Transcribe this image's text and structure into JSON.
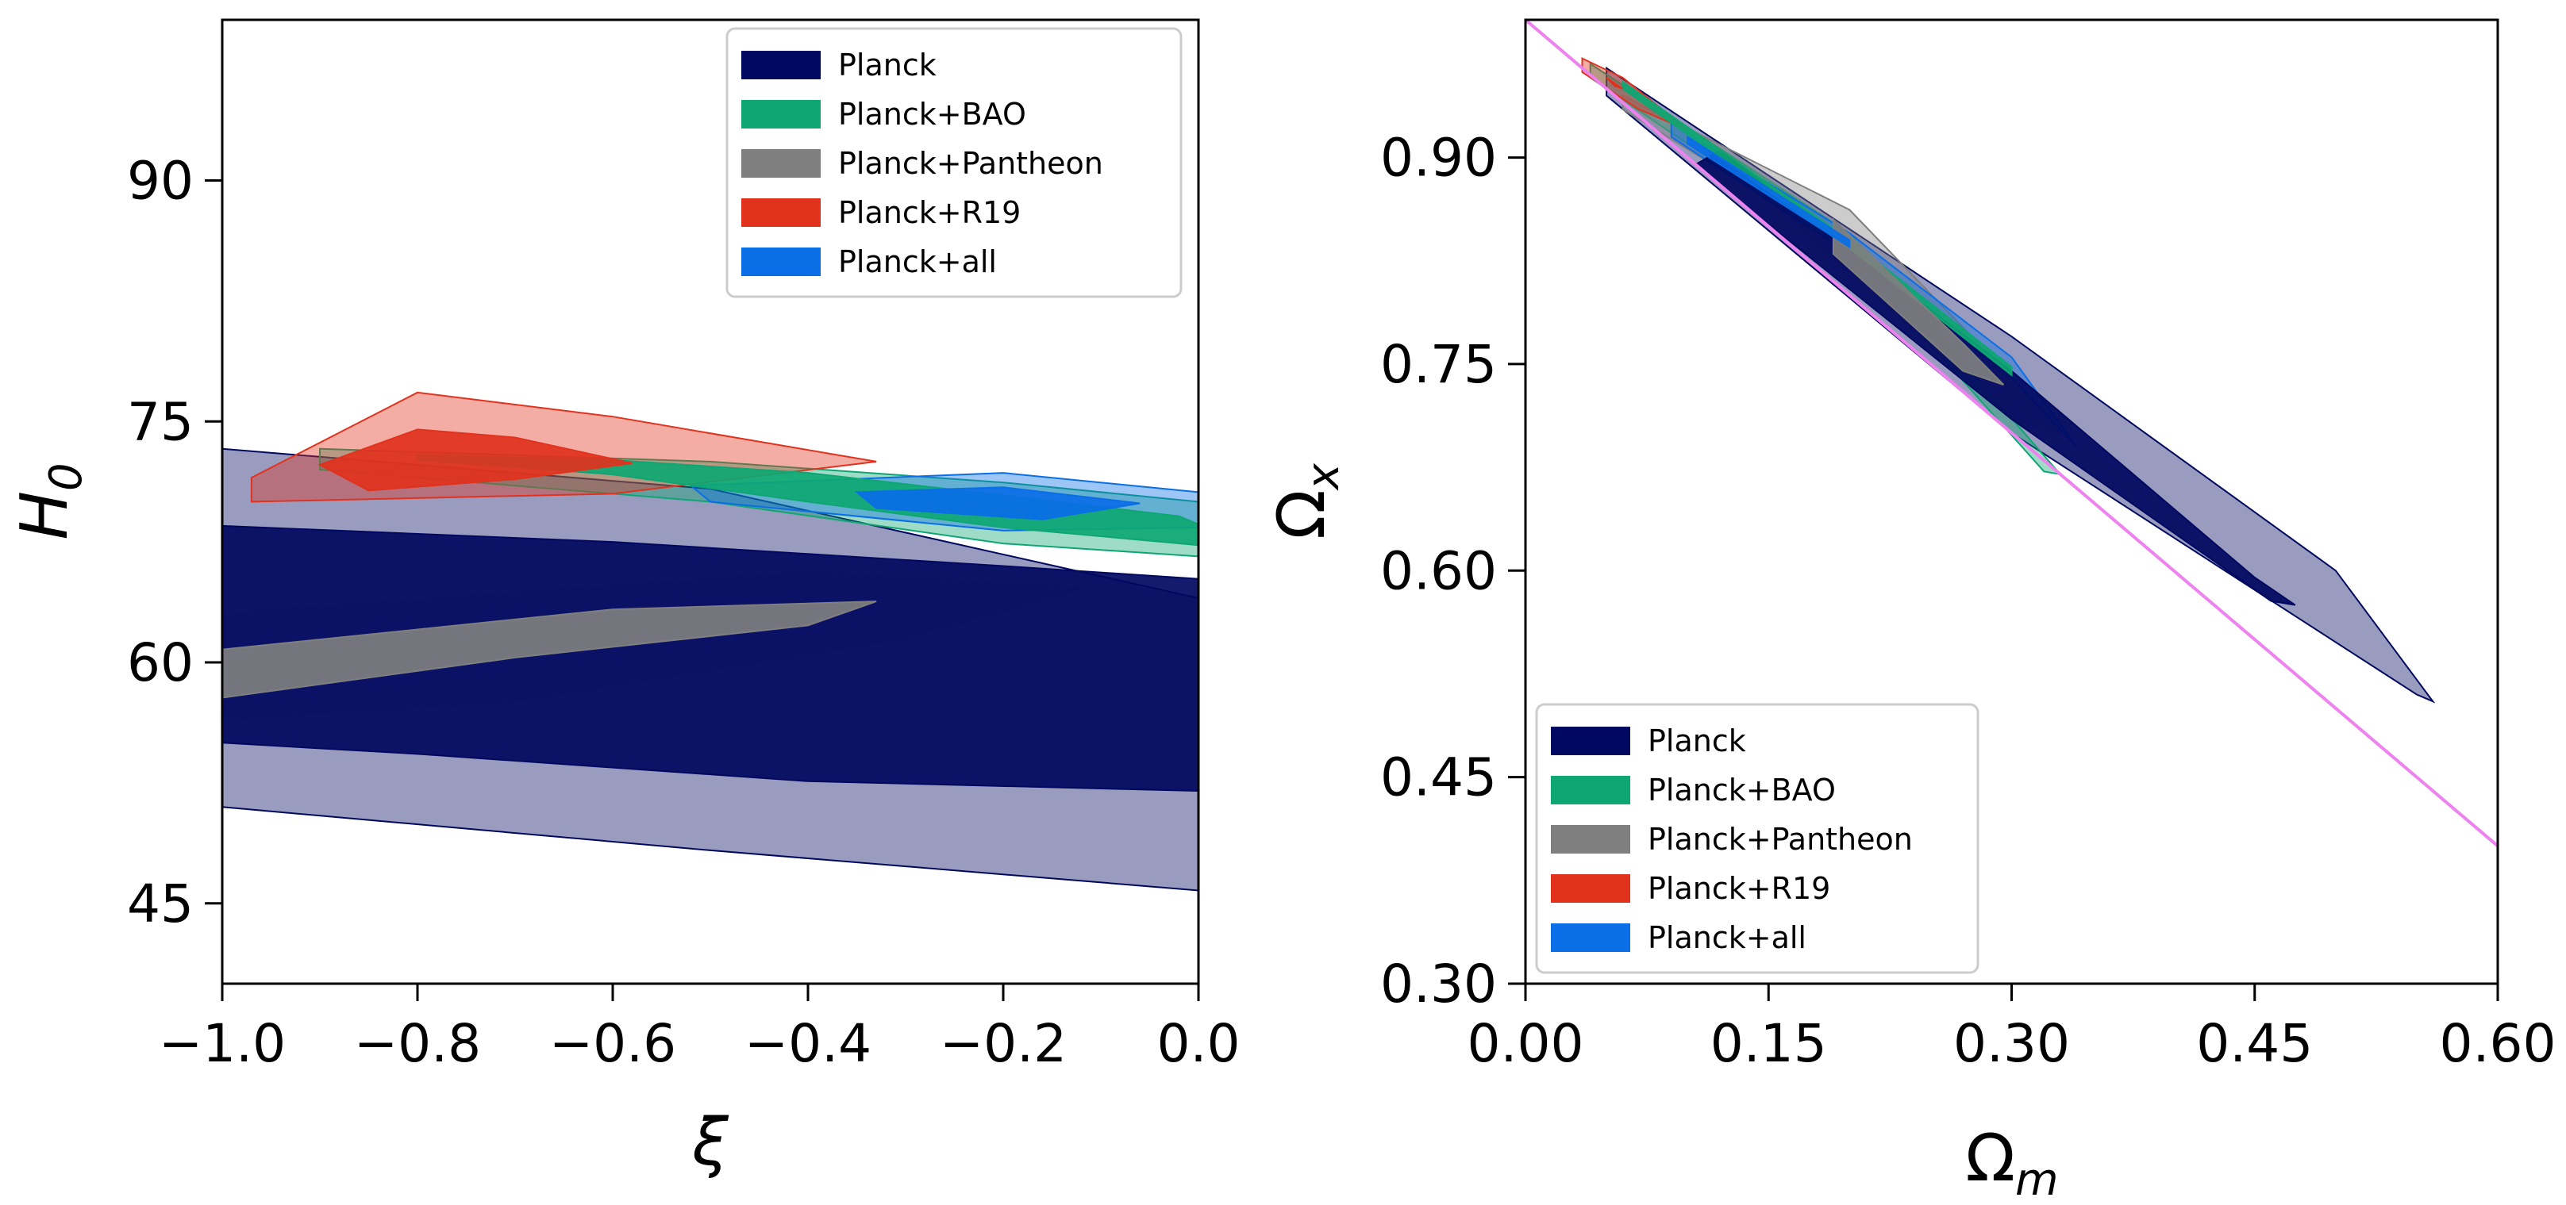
{
  "chart_data": [
    {
      "type": "contour",
      "xlabel": "ξ",
      "ylabel_main": "H",
      "ylabel_sub": "0",
      "xlim": [
        -1.0,
        0.0
      ],
      "ylim": [
        40,
        100
      ],
      "xticks": [
        -1.0,
        -0.8,
        -0.6,
        -0.4,
        -0.2,
        0.0
      ],
      "xtick_labels": [
        "−1.0",
        "−0.8",
        "−0.6",
        "−0.4",
        "−0.2",
        "0.0"
      ],
      "yticks": [
        45,
        60,
        75,
        90
      ],
      "ytick_labels": [
        "45",
        "60",
        "75",
        "90"
      ],
      "grid": false,
      "legend_position": "upper right",
      "series": [
        {
          "name": "Planck",
          "color": "#00085f",
          "inner": [
            [
              -1.0,
              68.5
            ],
            [
              -0.6,
              67.5
            ],
            [
              -0.2,
              66.0
            ],
            [
              0.0,
              65.2
            ],
            [
              0.0,
              52.0
            ],
            [
              -0.4,
              52.6
            ],
            [
              -0.8,
              54.3
            ],
            [
              -1.0,
              55.0
            ]
          ],
          "outer": [
            [
              -1.0,
              73.3
            ],
            [
              -0.5,
              70.8
            ],
            [
              0.0,
              64.0
            ],
            [
              0.0,
              45.8
            ],
            [
              -0.5,
              48.3
            ],
            [
              -1.0,
              51.0
            ]
          ]
        },
        {
          "name": "Planck+BAO",
          "color": "#0ea773",
          "inner": [
            [
              -0.8,
              72.9
            ],
            [
              -0.6,
              72.6
            ],
            [
              -0.4,
              71.8
            ],
            [
              -0.2,
              70.4
            ],
            [
              -0.02,
              69.1
            ],
            [
              0.0,
              68.6
            ],
            [
              0.0,
              67.3
            ],
            [
              -0.2,
              68.4
            ],
            [
              -0.4,
              70.0
            ],
            [
              -0.6,
              71.7
            ],
            [
              -0.8,
              72.6
            ]
          ],
          "outer": [
            [
              -0.9,
              73.3
            ],
            [
              -0.5,
              72.5
            ],
            [
              -0.2,
              71.2
            ],
            [
              0.0,
              70.0
            ],
            [
              0.0,
              66.6
            ],
            [
              -0.2,
              67.4
            ],
            [
              -0.5,
              70.0
            ],
            [
              -0.9,
              72.0
            ]
          ]
        },
        {
          "name": "Planck+Pantheon",
          "color": "#7f7f7f",
          "inner": [
            [
              -1.0,
              60.8
            ],
            [
              -0.6,
              63.3
            ],
            [
              -0.33,
              63.8
            ],
            [
              -0.4,
              62.3
            ],
            [
              -0.7,
              60.3
            ],
            [
              -1.0,
              57.8
            ]
          ],
          "outer": [
            [
              -1.0,
              63.0
            ],
            [
              -0.4,
              65.6
            ],
            [
              -0.12,
              64.6
            ],
            [
              -0.3,
              61.5
            ],
            [
              -0.7,
              57.6
            ],
            [
              -1.0,
              56.5
            ]
          ]
        },
        {
          "name": "Planck+R19",
          "color": "#e1321e",
          "inner": [
            [
              -0.9,
              72.3
            ],
            [
              -0.8,
              74.5
            ],
            [
              -0.7,
              74.0
            ],
            [
              -0.58,
              72.4
            ],
            [
              -0.7,
              71.4
            ],
            [
              -0.85,
              70.7
            ]
          ],
          "outer": [
            [
              -0.97,
              71.5
            ],
            [
              -0.8,
              76.8
            ],
            [
              -0.6,
              75.3
            ],
            [
              -0.33,
              72.5
            ],
            [
              -0.6,
              70.5
            ],
            [
              -0.97,
              70.0
            ]
          ]
        },
        {
          "name": "Planck+all",
          "color": "#0a6ee6",
          "inner": [
            [
              -0.35,
              70.6
            ],
            [
              -0.2,
              70.9
            ],
            [
              -0.06,
              69.9
            ],
            [
              -0.16,
              68.9
            ],
            [
              -0.33,
              69.6
            ]
          ],
          "outer": [
            [
              -0.52,
              71.0
            ],
            [
              -0.2,
              71.8
            ],
            [
              0.0,
              70.6
            ],
            [
              0.0,
              68.4
            ],
            [
              -0.2,
              68.2
            ],
            [
              -0.5,
              70.0
            ]
          ]
        }
      ]
    },
    {
      "type": "contour",
      "xlabel_main": "Ω",
      "xlabel_sub": "m",
      "ylabel_main": "Ω",
      "ylabel_sub": "x",
      "xlim": [
        0.0,
        0.6
      ],
      "ylim": [
        0.3,
        1.0
      ],
      "xticks": [
        0.0,
        0.15,
        0.3,
        0.45,
        0.6
      ],
      "xtick_labels": [
        "0.00",
        "0.15",
        "0.30",
        "0.45",
        "0.60"
      ],
      "yticks": [
        0.3,
        0.45,
        0.6,
        0.75,
        0.9
      ],
      "ytick_labels": [
        "0.30",
        "0.45",
        "0.60",
        "0.75",
        "0.90"
      ],
      "grid": false,
      "legend_position": "lower left",
      "reference_line": {
        "color": "#ee82ee",
        "points": [
          [
            0.0,
            1.0
          ],
          [
            0.6,
            0.4
          ]
        ]
      },
      "series": [
        {
          "name": "Planck",
          "color": "#00085f",
          "inner": [
            [
              0.12,
              0.905
            ],
            [
              0.3,
              0.745
            ],
            [
              0.45,
              0.595
            ],
            [
              0.475,
              0.575
            ],
            [
              0.46,
              0.578
            ],
            [
              0.3,
              0.71
            ],
            [
              0.12,
              0.88
            ],
            [
              0.105,
              0.895
            ]
          ],
          "outer": [
            [
              0.05,
              0.965
            ],
            [
              0.3,
              0.77
            ],
            [
              0.5,
              0.6
            ],
            [
              0.56,
              0.505
            ],
            [
              0.55,
              0.51
            ],
            [
              0.3,
              0.7
            ],
            [
              0.05,
              0.945
            ]
          ]
        },
        {
          "name": "Planck+BAO",
          "color": "#0ea773",
          "inner": [
            [
              0.06,
              0.955
            ],
            [
              0.2,
              0.84
            ],
            [
              0.3,
              0.748
            ],
            [
              0.3,
              0.742
            ],
            [
              0.2,
              0.834
            ],
            [
              0.06,
              0.95
            ]
          ],
          "outer": [
            [
              0.04,
              0.968
            ],
            [
              0.2,
              0.845
            ],
            [
              0.33,
              0.67
            ],
            [
              0.32,
              0.672
            ],
            [
              0.2,
              0.83
            ],
            [
              0.04,
              0.958
            ]
          ]
        },
        {
          "name": "Planck+Pantheon",
          "color": "#7f7f7f",
          "inner": [
            [
              0.19,
              0.855
            ],
            [
              0.27,
              0.765
            ],
            [
              0.295,
              0.735
            ],
            [
              0.27,
              0.745
            ],
            [
              0.19,
              0.83
            ]
          ],
          "outer": [
            [
              0.06,
              0.945
            ],
            [
              0.2,
              0.862
            ],
            [
              0.3,
              0.74
            ],
            [
              0.33,
              0.7
            ],
            [
              0.3,
              0.71
            ],
            [
              0.15,
              0.87
            ],
            [
              0.06,
              0.935
            ]
          ]
        },
        {
          "name": "Planck+R19",
          "color": "#e1321e",
          "inner": [
            [
              0.05,
              0.958
            ],
            [
              0.06,
              0.95
            ],
            [
              0.055,
              0.952
            ]
          ],
          "outer": [
            [
              0.035,
              0.972
            ],
            [
              0.06,
              0.958
            ],
            [
              0.1,
              0.92
            ],
            [
              0.07,
              0.935
            ],
            [
              0.035,
              0.962
            ]
          ]
        },
        {
          "name": "Planck+all",
          "color": "#0a6ee6",
          "inner": [
            [
              0.1,
              0.915
            ],
            [
              0.2,
              0.84
            ],
            [
              0.2,
              0.835
            ],
            [
              0.1,
              0.91
            ]
          ],
          "outer": [
            [
              0.09,
              0.925
            ],
            [
              0.2,
              0.845
            ],
            [
              0.3,
              0.755
            ],
            [
              0.34,
              0.69
            ],
            [
              0.3,
              0.74
            ],
            [
              0.2,
              0.83
            ],
            [
              0.09,
              0.915
            ]
          ]
        }
      ]
    }
  ]
}
